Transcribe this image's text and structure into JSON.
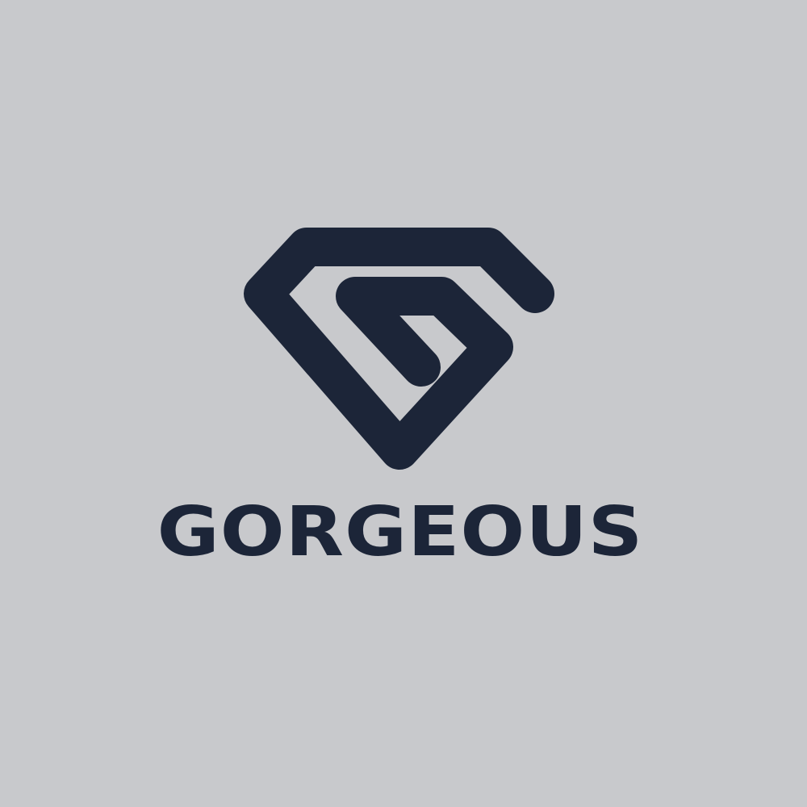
{
  "brand": {
    "name": "GORGEOUS",
    "logo_icon": "diamond-g-icon"
  },
  "colors": {
    "background": "#c8c9cc",
    "ink": "#1c2538"
  }
}
